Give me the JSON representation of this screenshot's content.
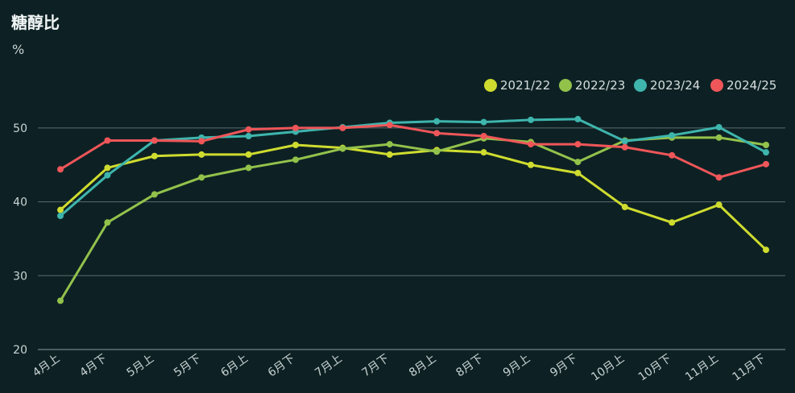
{
  "chart_data": {
    "type": "line",
    "title": "糖醇比",
    "ylabel": "%",
    "xlabel": "",
    "ylim": [
      20,
      55
    ],
    "yticks": [
      20,
      30,
      40,
      50
    ],
    "grid": true,
    "legend_position": "top-right",
    "categories": [
      "4月上",
      "4月下",
      "5月上",
      "5月下",
      "6月上",
      "6月下",
      "7月上",
      "7月下",
      "8月上",
      "8月下",
      "9月上",
      "9月下",
      "10月上",
      "10月下",
      "11月上",
      "11月下"
    ],
    "series": [
      {
        "name": "2021/22",
        "color": "#cfdc2f",
        "values": [
          38.9,
          44.6,
          46.2,
          46.4,
          46.4,
          47.7,
          47.3,
          46.4,
          47.0,
          46.7,
          45.0,
          43.9,
          39.3,
          37.2,
          39.6,
          33.5
        ]
      },
      {
        "name": "2022/23",
        "color": "#93c24b",
        "values": [
          26.6,
          37.2,
          41.0,
          43.3,
          44.6,
          45.7,
          47.2,
          47.8,
          46.8,
          48.6,
          48.1,
          45.4,
          48.3,
          48.7,
          48.7,
          47.7
        ]
      },
      {
        "name": "2023/24",
        "color": "#3eb5ad",
        "values": [
          38.1,
          43.6,
          48.3,
          48.7,
          48.9,
          49.5,
          50.1,
          50.7,
          50.9,
          50.8,
          51.1,
          51.2,
          48.2,
          49.0,
          50.1,
          46.7
        ]
      },
      {
        "name": "2024/25",
        "color": "#ef5659",
        "values": [
          44.4,
          48.3,
          48.3,
          48.2,
          49.8,
          50.0,
          50.0,
          50.4,
          49.3,
          48.9,
          47.8,
          47.8,
          47.4,
          46.3,
          43.3,
          45.1
        ]
      }
    ]
  }
}
